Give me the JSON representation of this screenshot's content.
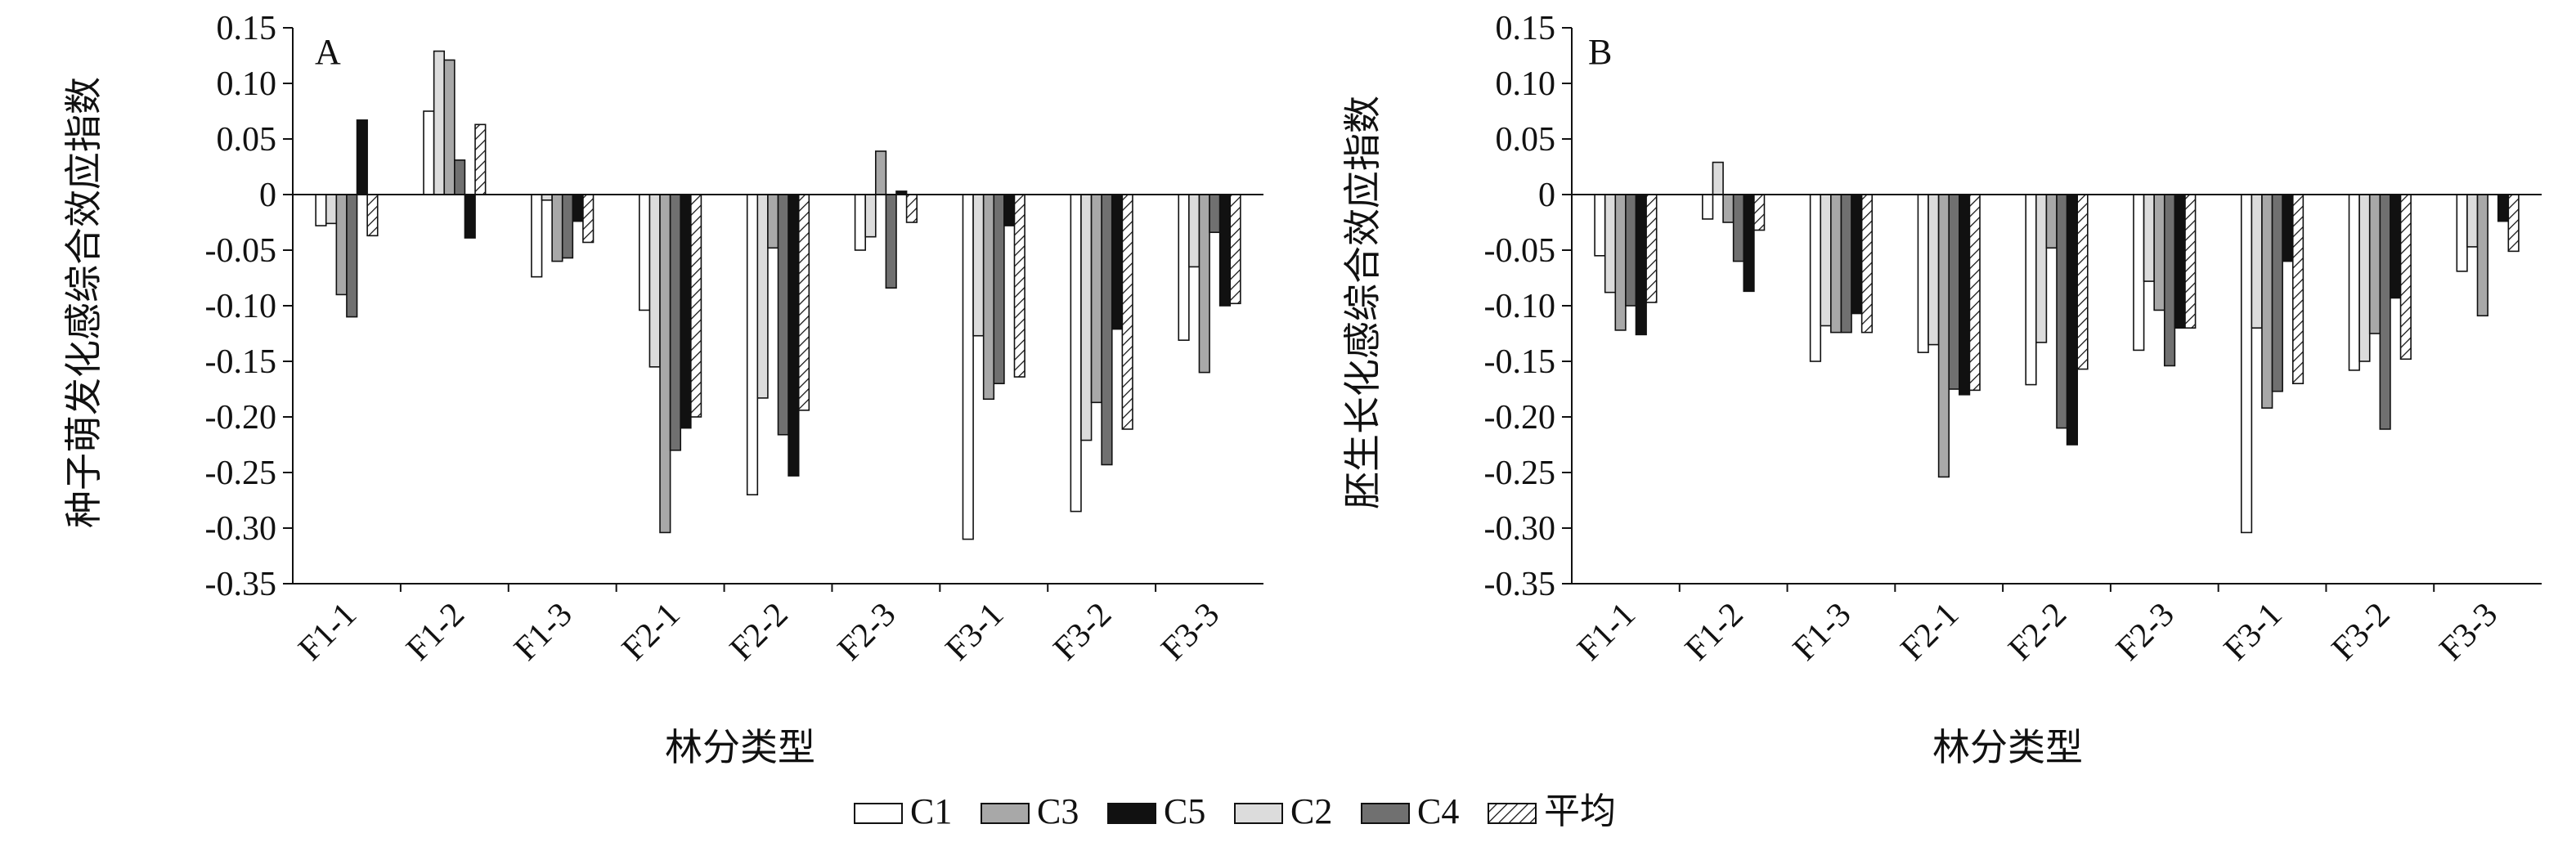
{
  "chart_data": [
    {
      "type": "bar",
      "panel_label": "A",
      "ylabel": "种子萌发化感综合效应指数",
      "xlabel": "林分类型",
      "ylim": [
        -0.35,
        0.15
      ],
      "yticks": [
        "0.15",
        "0.10",
        "0.05",
        "0",
        "-0.05",
        "-0.10",
        "-0.15",
        "-0.20",
        "-0.25",
        "-0.30",
        "-0.35"
      ],
      "categories": [
        "F1-1",
        "F1-2",
        "F1-3",
        "F2-1",
        "F2-2",
        "F2-3",
        "F3-1",
        "F3-2",
        "F3-3"
      ],
      "series": [
        {
          "name": "C1",
          "values": [
            -0.028,
            0.075,
            -0.074,
            -0.104,
            -0.27,
            -0.05,
            -0.31,
            -0.285,
            -0.131
          ]
        },
        {
          "name": "C2",
          "values": [
            -0.026,
            0.129,
            -0.005,
            -0.155,
            -0.183,
            -0.038,
            -0.127,
            -0.221,
            -0.065
          ]
        },
        {
          "name": "C3",
          "values": [
            -0.09,
            0.121,
            -0.06,
            -0.304,
            -0.048,
            0.039,
            -0.184,
            -0.187,
            -0.16
          ]
        },
        {
          "name": "C4",
          "values": [
            -0.11,
            0.031,
            -0.057,
            -0.23,
            -0.216,
            -0.084,
            -0.17,
            -0.243,
            -0.034
          ]
        },
        {
          "name": "C5",
          "values": [
            0.067,
            -0.039,
            -0.024,
            -0.21,
            -0.253,
            0.003,
            -0.028,
            -0.121,
            -0.1
          ]
        },
        {
          "name": "平均",
          "values": [
            -0.037,
            0.063,
            -0.043,
            -0.2,
            -0.194,
            -0.025,
            -0.164,
            -0.211,
            -0.098
          ]
        }
      ]
    },
    {
      "type": "bar",
      "panel_label": "B",
      "ylabel": "胚生长化感综合效应指数",
      "xlabel": "林分类型",
      "ylim": [
        -0.35,
        0.15
      ],
      "yticks": [
        "0.15",
        "0.10",
        "0.05",
        "0",
        "-0.05",
        "-0.10",
        "-0.15",
        "-0.20",
        "-0.25",
        "-0.30",
        "-0.35"
      ],
      "categories": [
        "F1-1",
        "F1-2",
        "F1-3",
        "F2-1",
        "F2-2",
        "F2-3",
        "F3-1",
        "F3-2",
        "F3-3"
      ],
      "series": [
        {
          "name": "C1",
          "values": [
            -0.055,
            -0.022,
            -0.15,
            -0.142,
            -0.171,
            -0.14,
            -0.304,
            -0.158,
            -0.069
          ]
        },
        {
          "name": "C2",
          "values": [
            -0.088,
            0.029,
            -0.118,
            -0.135,
            -0.133,
            -0.078,
            -0.12,
            -0.15,
            -0.047
          ]
        },
        {
          "name": "C3",
          "values": [
            -0.122,
            -0.025,
            -0.124,
            -0.254,
            -0.048,
            -0.104,
            -0.192,
            -0.125,
            -0.109
          ]
        },
        {
          "name": "C4",
          "values": [
            -0.1,
            -0.06,
            -0.124,
            -0.175,
            -0.21,
            -0.154,
            -0.177,
            -0.211,
            0.0
          ]
        },
        {
          "name": "C5",
          "values": [
            -0.126,
            -0.087,
            -0.107,
            -0.18,
            -0.225,
            -0.12,
            -0.06,
            -0.093,
            -0.024
          ]
        },
        {
          "name": "平均",
          "values": [
            -0.097,
            -0.032,
            -0.124,
            -0.176,
            -0.157,
            -0.12,
            -0.17,
            -0.148,
            -0.051
          ]
        }
      ]
    }
  ],
  "legend": {
    "placement": "bottom-center",
    "items": [
      {
        "label": "C1",
        "fill": "white"
      },
      {
        "label": "C3",
        "fill": "#a8a8a8"
      },
      {
        "label": "C5",
        "fill": "#111111"
      },
      {
        "label": "C2",
        "fill": "#dcdcdc"
      },
      {
        "label": "C4",
        "fill": "#707070"
      },
      {
        "label": "平均",
        "fill": "hatch"
      }
    ]
  },
  "series_style": {
    "C1": {
      "fill": "#ffffff"
    },
    "C2": {
      "fill": "#dcdcdc"
    },
    "C3": {
      "fill": "#a8a8a8"
    },
    "C4": {
      "fill": "#707070"
    },
    "C5": {
      "fill": "#111111"
    },
    "平均": {
      "fill": "hatch"
    }
  }
}
